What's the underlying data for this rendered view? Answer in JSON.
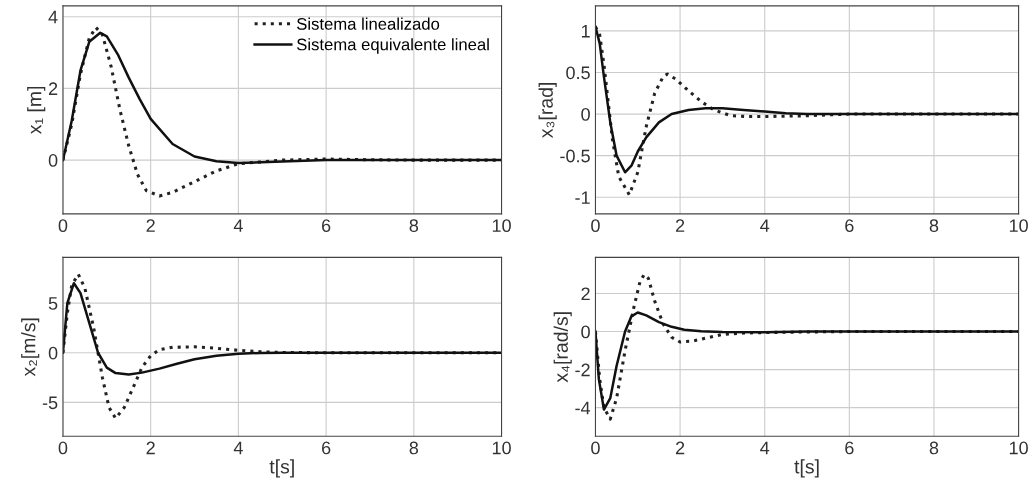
{
  "chart_data": [
    {
      "type": "line",
      "ylabel": "x₁ [m]",
      "xlim": [
        0,
        10
      ],
      "xticks": [
        0,
        2,
        4,
        6,
        8,
        10
      ],
      "ylim": [
        -1.5,
        4.3
      ],
      "yticks": [
        0,
        2,
        4
      ],
      "grid": true,
      "legend": "top right",
      "series": [
        {
          "name": "Sistema linealizado",
          "color": "#222222",
          "line_style": "dotted",
          "x": [
            0,
            0.2,
            0.4,
            0.6,
            0.75,
            0.9,
            1.1,
            1.3,
            1.5,
            1.7,
            1.9,
            2.2,
            2.5,
            3.0,
            3.5,
            4,
            4.5,
            5,
            6,
            7,
            8,
            10
          ],
          "values": [
            0,
            1.0,
            2.4,
            3.4,
            3.7,
            3.5,
            2.6,
            1.4,
            0.4,
            -0.4,
            -0.85,
            -1.0,
            -0.9,
            -0.6,
            -0.3,
            -0.1,
            -0.05,
            0,
            0.03,
            0.01,
            0,
            0
          ]
        },
        {
          "name": "Sistema equivalente lineal",
          "color": "#111111",
          "line_style": "solid",
          "x": [
            0,
            0.2,
            0.4,
            0.6,
            0.85,
            1.0,
            1.25,
            1.5,
            1.75,
            2.0,
            2.5,
            3.0,
            3.5,
            4,
            5,
            6,
            10
          ],
          "values": [
            0,
            1.1,
            2.5,
            3.3,
            3.55,
            3.45,
            2.95,
            2.3,
            1.7,
            1.15,
            0.45,
            0.1,
            -0.03,
            -0.08,
            -0.04,
            0,
            0
          ]
        }
      ]
    },
    {
      "type": "line",
      "ylabel": "x₃[rad]",
      "xlim": [
        0,
        10
      ],
      "xticks": [
        0,
        2,
        4,
        6,
        8,
        10
      ],
      "ylim": [
        -1.2,
        1.3
      ],
      "yticks": [
        -1,
        -0.5,
        0,
        0.5,
        1
      ],
      "grid": true,
      "series": [
        {
          "color": "#222222",
          "line_style": "dotted",
          "x": [
            0,
            0.1,
            0.2,
            0.3,
            0.4,
            0.55,
            0.8,
            1.0,
            1.2,
            1.4,
            1.6,
            1.7,
            1.9,
            2.2,
            2.5,
            2.8,
            3.2,
            3.6,
            4,
            5,
            6,
            10
          ],
          "values": [
            1.05,
            0.95,
            0.6,
            0.15,
            -0.3,
            -0.75,
            -0.97,
            -0.7,
            -0.15,
            0.25,
            0.45,
            0.48,
            0.42,
            0.28,
            0.15,
            0.05,
            -0.02,
            -0.03,
            -0.03,
            -0.02,
            0,
            0
          ]
        },
        {
          "color": "#111111",
          "line_style": "solid",
          "x": [
            0,
            0.1,
            0.2,
            0.35,
            0.5,
            0.7,
            0.85,
            1.0,
            1.2,
            1.5,
            1.8,
            2.2,
            2.6,
            3.0,
            3.5,
            4,
            4.5,
            5,
            10
          ],
          "values": [
            1.05,
            0.85,
            0.45,
            -0.1,
            -0.5,
            -0.7,
            -0.62,
            -0.45,
            -0.28,
            -0.1,
            0.0,
            0.05,
            0.07,
            0.07,
            0.05,
            0.03,
            0.01,
            0,
            0
          ]
        }
      ]
    },
    {
      "type": "line",
      "ylabel": "x₂[m/s]",
      "xlabel": "t[s]",
      "xlim": [
        0,
        10
      ],
      "xticks": [
        0,
        2,
        4,
        6,
        8,
        10
      ],
      "ylim": [
        -8.4,
        9.6
      ],
      "yticks": [
        -5,
        0,
        5
      ],
      "grid": true,
      "series": [
        {
          "color": "#222222",
          "line_style": "dotted",
          "x": [
            0,
            0.1,
            0.2,
            0.35,
            0.5,
            0.7,
            0.9,
            1.05,
            1.2,
            1.4,
            1.6,
            1.8,
            2.0,
            2.2,
            2.5,
            3.0,
            3.5,
            4.0,
            4.5,
            5,
            6,
            10
          ],
          "values": [
            0,
            4,
            6.8,
            7.9,
            6.5,
            2.5,
            -2.5,
            -5.5,
            -6.6,
            -5.5,
            -3.5,
            -1.5,
            -0.3,
            0.3,
            0.55,
            0.6,
            0.45,
            0.25,
            0.1,
            0.03,
            0,
            0
          ]
        },
        {
          "color": "#111111",
          "line_style": "solid",
          "x": [
            0,
            0.1,
            0.25,
            0.4,
            0.6,
            0.8,
            1.0,
            1.2,
            1.5,
            1.8,
            2.2,
            2.6,
            3.0,
            3.5,
            4.0,
            4.5,
            5,
            10
          ],
          "values": [
            0,
            5,
            7.0,
            6,
            3,
            0,
            -1.5,
            -2.05,
            -2.2,
            -2.0,
            -1.6,
            -1.1,
            -0.65,
            -0.3,
            -0.1,
            -0.02,
            0,
            0
          ]
        }
      ]
    },
    {
      "type": "line",
      "ylabel": "x₄[rad/s]",
      "xlabel": "t[s]",
      "xlim": [
        0,
        10
      ],
      "xticks": [
        0,
        2,
        4,
        6,
        8,
        10
      ],
      "ylim": [
        -5.5,
        3.9
      ],
      "yticks": [
        -4,
        -2,
        0,
        2
      ],
      "grid": true,
      "series": [
        {
          "color": "#222222",
          "line_style": "dotted",
          "x": [
            0,
            0.1,
            0.2,
            0.35,
            0.5,
            0.7,
            0.9,
            1.05,
            1.15,
            1.25,
            1.4,
            1.6,
            1.8,
            2.0,
            2.3,
            2.7,
            3.0,
            3.5,
            4,
            5,
            6,
            10
          ],
          "values": [
            0,
            -2.5,
            -4.0,
            -4.6,
            -3.5,
            -1.0,
            1.2,
            2.6,
            3.0,
            2.8,
            1.6,
            0.4,
            -0.3,
            -0.55,
            -0.5,
            -0.3,
            -0.15,
            -0.08,
            -0.05,
            -0.02,
            0,
            0
          ]
        },
        {
          "color": "#111111",
          "line_style": "solid",
          "x": [
            0,
            0.08,
            0.2,
            0.35,
            0.5,
            0.7,
            0.85,
            1.0,
            1.2,
            1.5,
            1.8,
            2.1,
            2.5,
            3.0,
            4,
            5,
            10
          ],
          "values": [
            0,
            -2.5,
            -4.1,
            -3.5,
            -1.8,
            0,
            0.8,
            1.0,
            0.85,
            0.5,
            0.25,
            0.1,
            0.02,
            -0.02,
            -0.03,
            0,
            0
          ]
        }
      ]
    }
  ]
}
